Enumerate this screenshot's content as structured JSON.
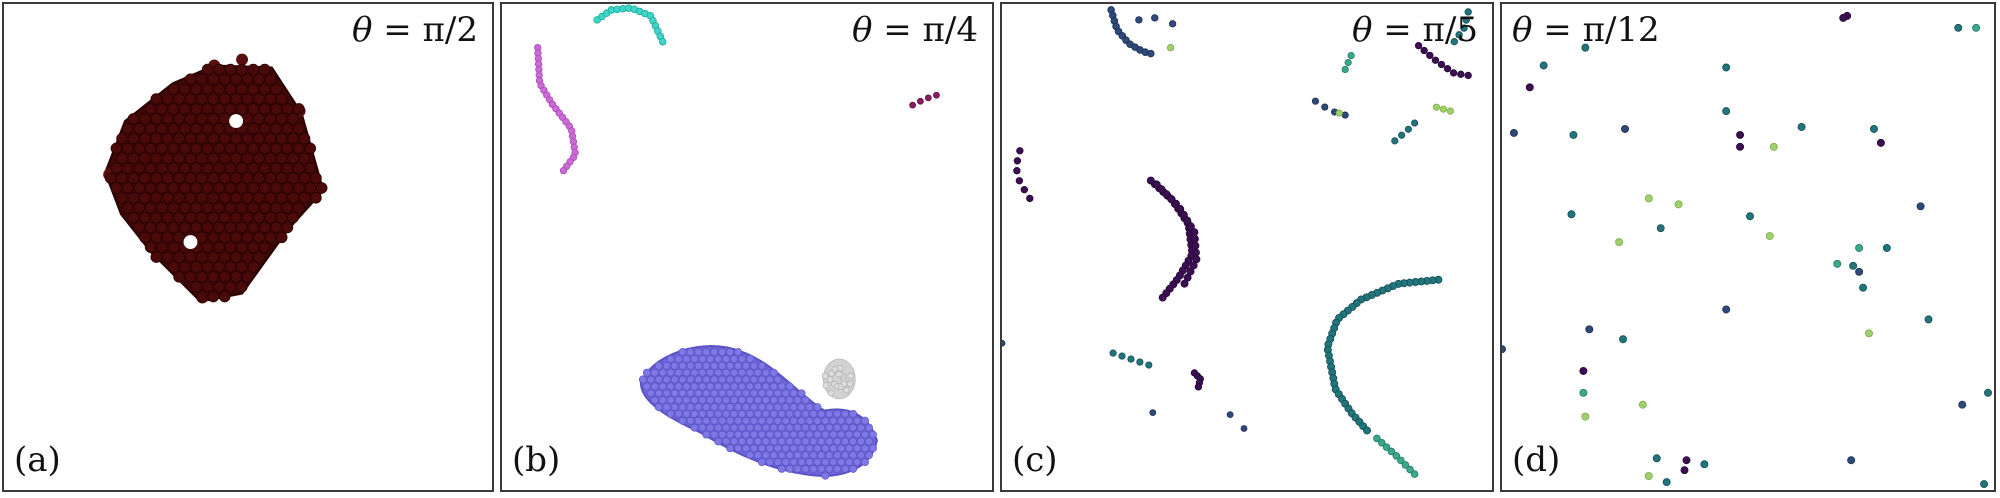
{
  "panels": [
    {
      "id": "a",
      "label": "(a)",
      "theta_symbol": "θ",
      "theta_value": "= π/2",
      "cluster_color": "#4a0a0a"
    },
    {
      "id": "b",
      "label": "(b)",
      "theta_symbol": "θ",
      "theta_value": "= π/4",
      "cluster_colors": {
        "large": "#7a74e0",
        "pink": "#cc6bd6",
        "cyan": "#3dd6c8",
        "gray": "#d6d6d6",
        "purple": "#8e1a63"
      }
    },
    {
      "id": "c",
      "label": "(c)",
      "theta_symbol": "θ",
      "theta_value": "= π/5",
      "cluster_colors": {
        "dark": "#3b0f52",
        "navy": "#2f4a7a",
        "teal": "#22757c",
        "green": "#3aa88c",
        "lime": "#9fd06a"
      }
    },
    {
      "id": "d",
      "label": "(d)",
      "theta_symbol": "θ",
      "theta_value": "= π/12",
      "cluster_colors": {
        "dark": "#3b0f52",
        "navy": "#2f4a7a",
        "teal": "#22757c",
        "green": "#3aa88c",
        "lime": "#9fd06a"
      }
    }
  ]
}
